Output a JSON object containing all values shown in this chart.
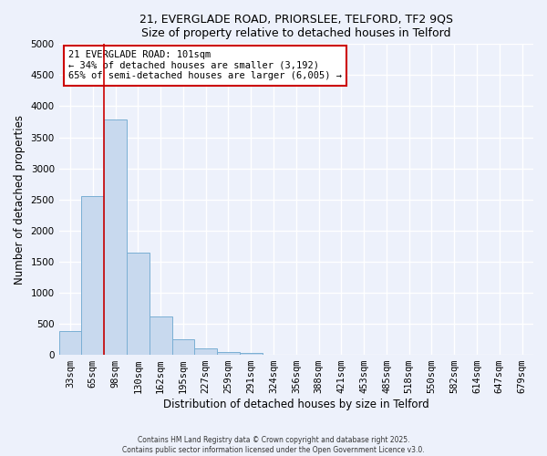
{
  "title1": "21, EVERGLADE ROAD, PRIORSLEE, TELFORD, TF2 9QS",
  "title2": "Size of property relative to detached houses in Telford",
  "xlabel": "Distribution of detached houses by size in Telford",
  "ylabel": "Number of detached properties",
  "bar_values": [
    390,
    2550,
    3780,
    1650,
    620,
    250,
    100,
    50,
    30,
    0,
    0,
    0,
    0,
    0,
    0,
    0,
    0,
    0,
    0,
    0,
    0
  ],
  "categories": [
    "33sqm",
    "65sqm",
    "98sqm",
    "130sqm",
    "162sqm",
    "195sqm",
    "227sqm",
    "259sqm",
    "291sqm",
    "324sqm",
    "356sqm",
    "388sqm",
    "421sqm",
    "453sqm",
    "485sqm",
    "518sqm",
    "550sqm",
    "582sqm",
    "614sqm",
    "647sqm",
    "679sqm"
  ],
  "bar_color": "#c8d9ee",
  "bar_edge_color": "#7aafd4",
  "vline_x": 1.5,
  "vline_color": "#cc0000",
  "ylim": [
    0,
    5000
  ],
  "yticks": [
    0,
    500,
    1000,
    1500,
    2000,
    2500,
    3000,
    3500,
    4000,
    4500,
    5000
  ],
  "annotation_title": "21 EVERGLADE ROAD: 101sqm",
  "annotation_line1": "← 34% of detached houses are smaller (3,192)",
  "annotation_line2": "65% of semi-detached houses are larger (6,005) →",
  "annotation_box_color": "#ffffff",
  "annotation_box_edge": "#cc0000",
  "footer1": "Contains HM Land Registry data © Crown copyright and database right 2025.",
  "footer2": "Contains public sector information licensed under the Open Government Licence v3.0.",
  "bg_color": "#edf1fb",
  "grid_color": "#ffffff"
}
